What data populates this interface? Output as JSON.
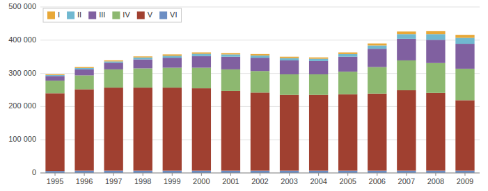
{
  "chart_data": {
    "type": "bar",
    "stacked": true,
    "categories": [
      1995,
      1996,
      1997,
      1998,
      1999,
      2000,
      2001,
      2002,
      2003,
      2004,
      2005,
      2006,
      2007,
      2008,
      2009
    ],
    "series": [
      {
        "name": "VI",
        "color": "#6B8EC4",
        "values": [
          6000,
          7000,
          7000,
          7000,
          7000,
          7000,
          7000,
          7000,
          7000,
          7000,
          7000,
          7000,
          7000,
          7000,
          7000
        ]
      },
      {
        "name": "V",
        "color": "#A04030",
        "values": [
          234000,
          245000,
          250000,
          250000,
          250000,
          248000,
          240000,
          235000,
          228000,
          228000,
          230000,
          232000,
          242000,
          234000,
          212000
        ]
      },
      {
        "name": "IV",
        "color": "#8DB870",
        "values": [
          38000,
          42000,
          55000,
          58000,
          60000,
          62000,
          65000,
          65000,
          62000,
          62000,
          68000,
          80000,
          90000,
          90000,
          95000
        ]
      },
      {
        "name": "III",
        "color": "#8060A0",
        "values": [
          14000,
          18000,
          20000,
          27000,
          30000,
          35000,
          38000,
          40000,
          42000,
          40000,
          45000,
          55000,
          65000,
          70000,
          75000
        ]
      },
      {
        "name": "II",
        "color": "#70B8D0",
        "values": [
          3000,
          4000,
          4000,
          6000,
          6000,
          7000,
          7000,
          7000,
          7000,
          7000,
          8000,
          10000,
          14000,
          17000,
          18000
        ]
      },
      {
        "name": "I",
        "color": "#E8A838",
        "values": [
          2000,
          3000,
          3000,
          3000,
          4000,
          4000,
          4000,
          4000,
          4000,
          4000,
          5000,
          6000,
          8000,
          9000,
          9000
        ]
      }
    ],
    "ylim": [
      0,
      500000
    ],
    "yticks": [
      0,
      {
        "value": 100000,
        "label": "100 000"
      },
      {
        "value": 200000,
        "label": "200 000"
      },
      {
        "value": 300000,
        "label": "300 000"
      },
      {
        "value": 400000,
        "label": "400 000"
      },
      {
        "value": 500000,
        "label": "500 000"
      }
    ],
    "grid": true,
    "legend": "upper left"
  }
}
